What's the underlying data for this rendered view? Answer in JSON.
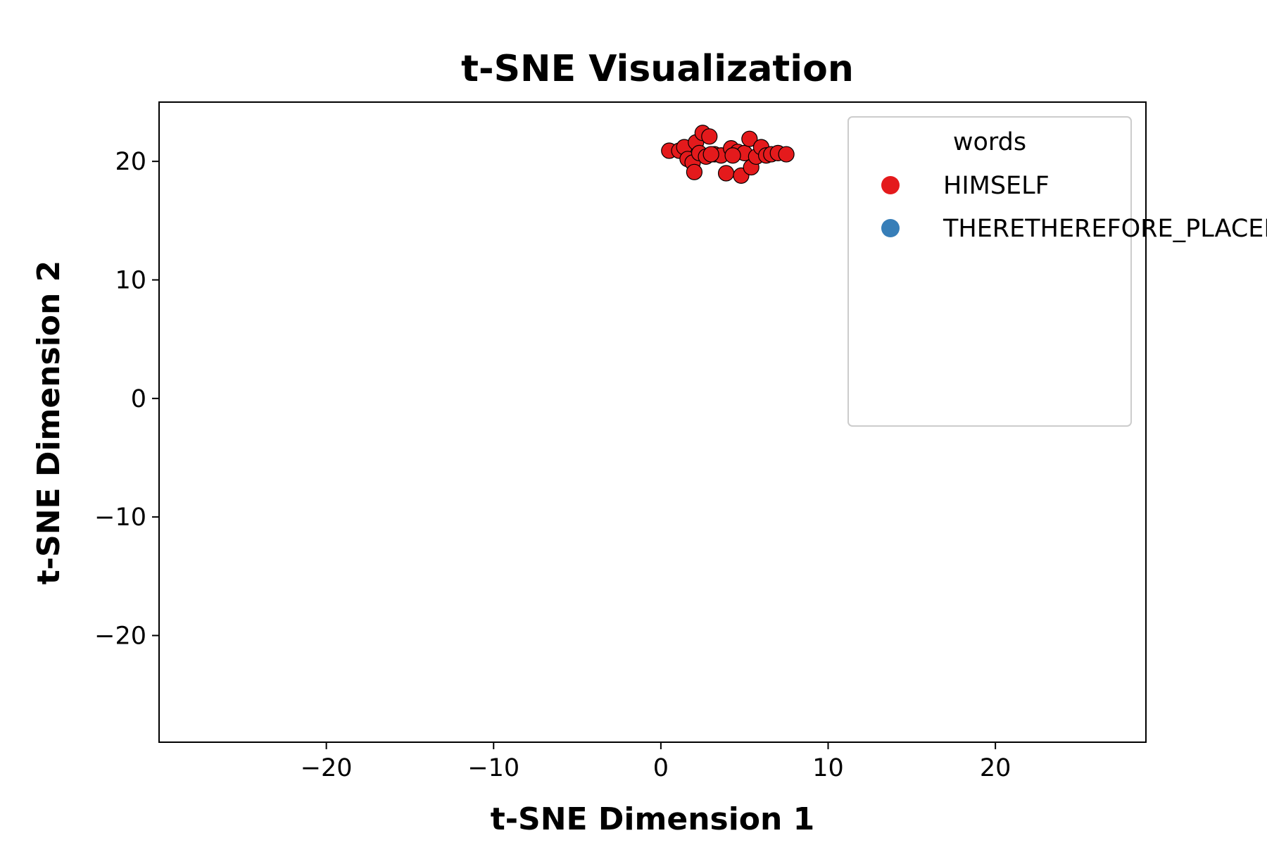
{
  "chart_data": {
    "type": "scatter",
    "title": "t-SNE Visualization",
    "xlabel": "t-SNE Dimension 1",
    "ylabel": "t-SNE Dimension 2",
    "xlim": [
      -30,
      29
    ],
    "ylim": [
      -29,
      25
    ],
    "xticks": [
      -20,
      -10,
      0,
      10,
      20
    ],
    "yticks": [
      -20,
      -10,
      0,
      10,
      20
    ],
    "tick_labels_x": [
      "−20",
      "−10",
      "0",
      "10",
      "20"
    ],
    "tick_labels_y": [
      "−20",
      "−10",
      "0",
      "10",
      "20"
    ],
    "grid": false,
    "legend": {
      "title": "words",
      "placement": "top-right"
    },
    "series": [
      {
        "name": "HIMSELF",
        "color": "#e41a1c",
        "points": [
          [
            0.5,
            20.9
          ],
          [
            1.1,
            20.9
          ],
          [
            1.4,
            21.2
          ],
          [
            1.6,
            20.2
          ],
          [
            1.9,
            19.9
          ],
          [
            2.1,
            21.6
          ],
          [
            2.3,
            20.7
          ],
          [
            2.5,
            22.4
          ],
          [
            2.7,
            20.4
          ],
          [
            2.9,
            22.1
          ],
          [
            3.2,
            20.6
          ],
          [
            3.6,
            20.5
          ],
          [
            3.9,
            19.0
          ],
          [
            4.2,
            21.1
          ],
          [
            4.6,
            20.8
          ],
          [
            4.8,
            18.8
          ],
          [
            5.0,
            20.7
          ],
          [
            5.3,
            21.9
          ],
          [
            5.4,
            19.5
          ],
          [
            5.7,
            20.4
          ],
          [
            6.0,
            21.2
          ],
          [
            6.3,
            20.5
          ],
          [
            6.6,
            20.6
          ],
          [
            7.0,
            20.7
          ],
          [
            7.5,
            20.6
          ],
          [
            2.0,
            19.1
          ],
          [
            4.3,
            20.5
          ],
          [
            3.0,
            20.6
          ]
        ]
      },
      {
        "name": "THERETHEREFORE_PLACEHOLDER",
        "color": "#377eb8",
        "points": []
      }
    ]
  }
}
